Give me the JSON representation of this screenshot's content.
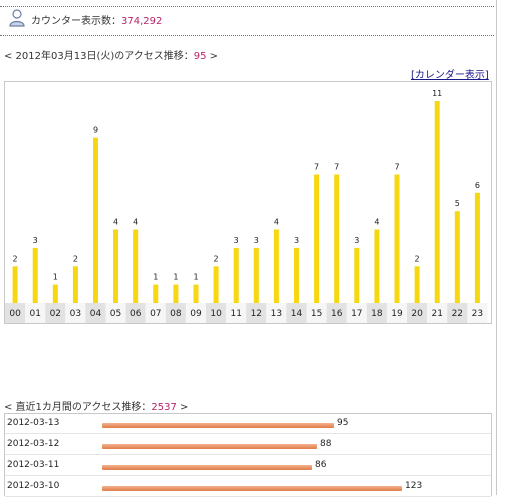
{
  "counter": {
    "label": "カウンター表示数：",
    "value": "374,292"
  },
  "daily": {
    "heading_prefix": "< 2012年03月13日(火)のアクセス推移：",
    "heading_total": "95",
    "heading_suffix": " >",
    "calendar_link": "[カレンダー表示]"
  },
  "chart_data": {
    "type": "bar",
    "categories": [
      "00",
      "01",
      "02",
      "03",
      "04",
      "05",
      "06",
      "07",
      "08",
      "09",
      "10",
      "11",
      "12",
      "13",
      "14",
      "15",
      "16",
      "17",
      "18",
      "19",
      "20",
      "21",
      "22",
      "23"
    ],
    "values": [
      2,
      3,
      1,
      2,
      9,
      4,
      4,
      1,
      1,
      1,
      2,
      3,
      3,
      4,
      3,
      7,
      7,
      3,
      4,
      7,
      2,
      11,
      5,
      6
    ],
    "ylim": [
      0,
      11
    ],
    "bar_color": "#f6d711"
  },
  "monthly": {
    "heading_prefix": "< 直近1カ月間のアクセス推移：",
    "heading_total": "2537",
    "heading_suffix": " >",
    "rows": [
      {
        "date": "2012-03-13",
        "value": 95
      },
      {
        "date": "2012-03-12",
        "value": 88
      },
      {
        "date": "2012-03-11",
        "value": 86
      },
      {
        "date": "2012-03-10",
        "value": 123
      }
    ],
    "bar_color": "#e88a5a"
  }
}
